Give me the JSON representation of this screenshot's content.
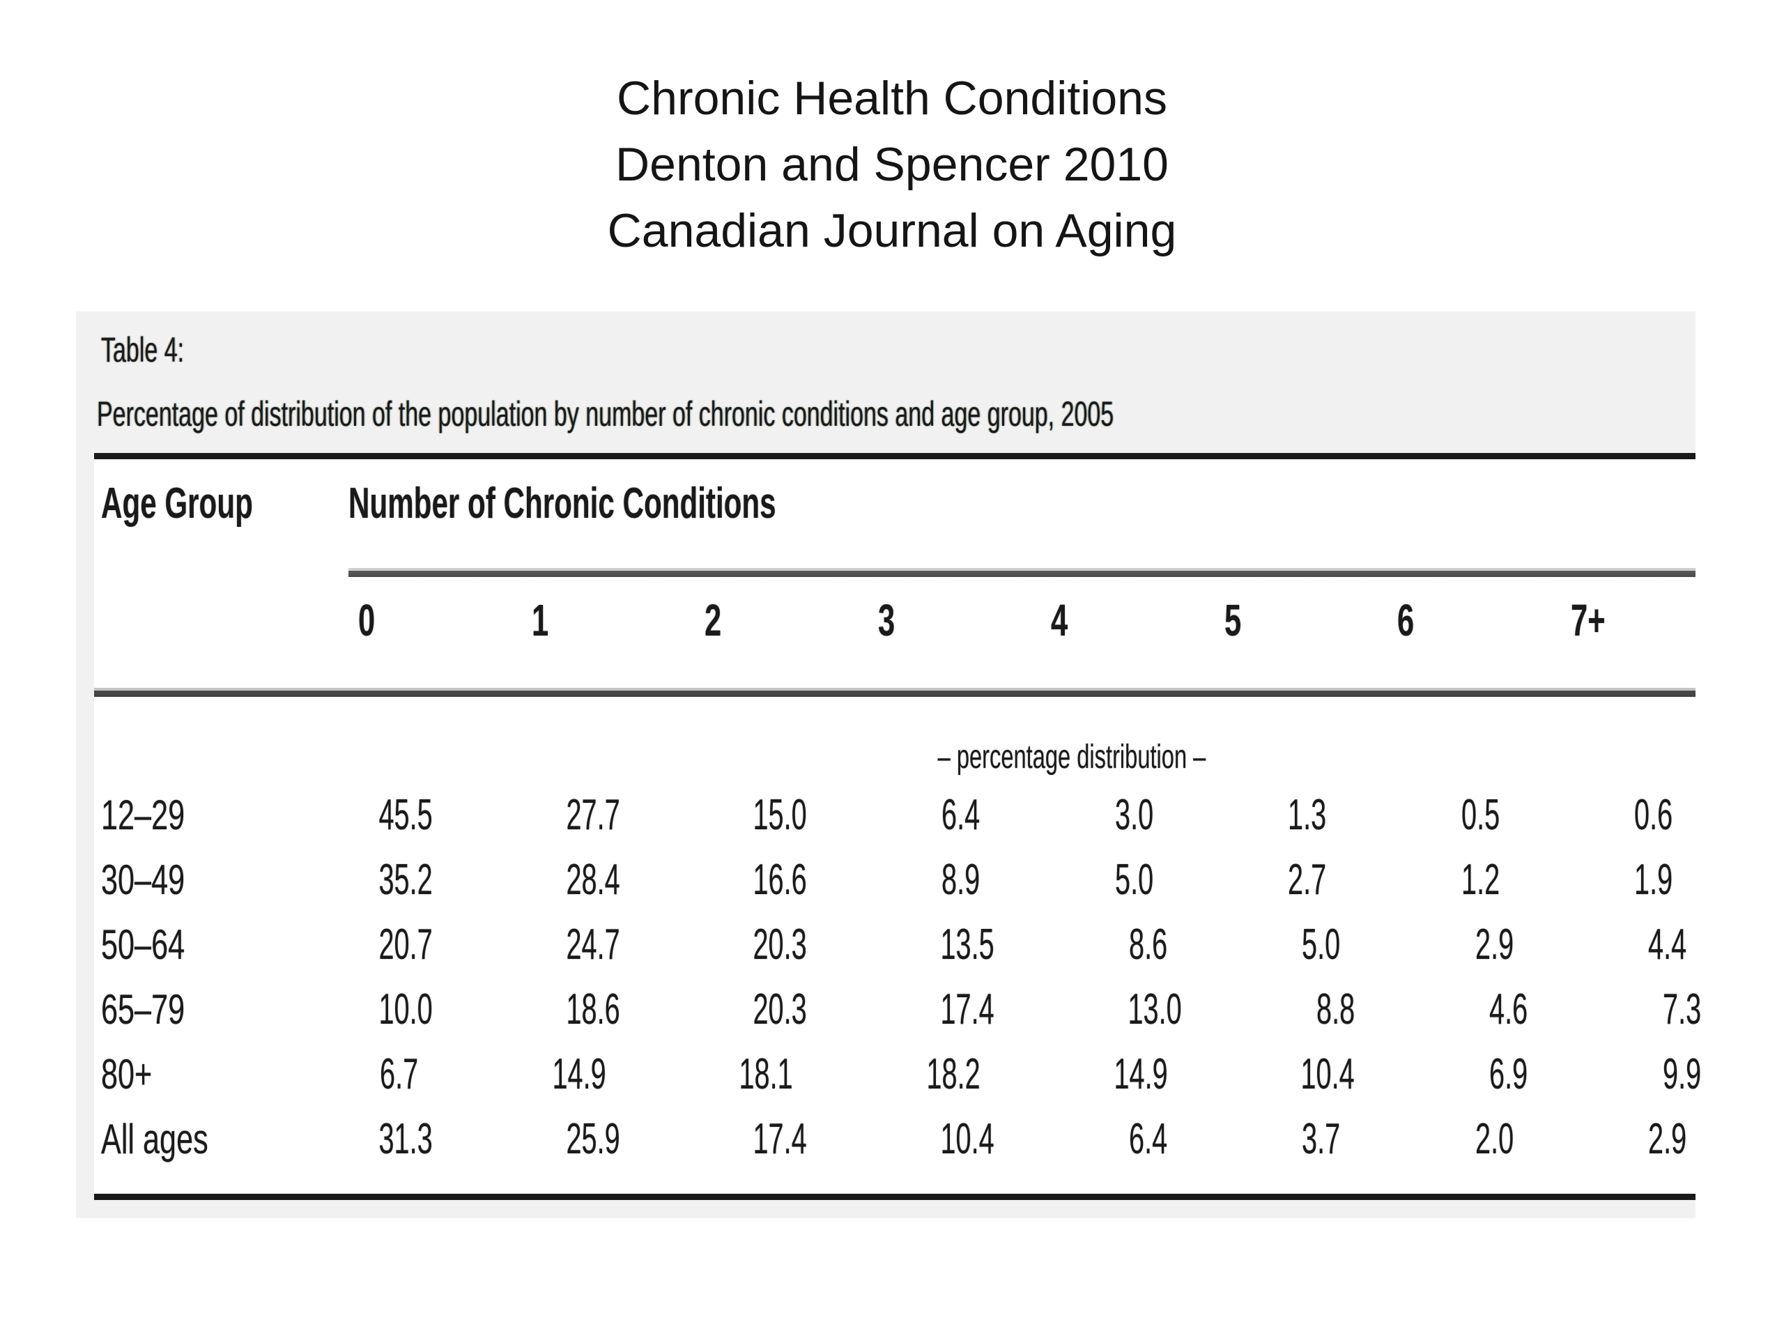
{
  "title": {
    "lines": [
      "Chronic Health Conditions",
      "Denton and Spencer 2010",
      "Canadian Journal on Aging"
    ]
  },
  "table": {
    "label": "Table 4:",
    "caption": "Percentage of distribution of the population by number of chronic conditions and age group, 2005",
    "row_header": "Age Group",
    "col_group_header": "Number of Chronic Conditions",
    "columns": [
      "0",
      "1",
      "2",
      "3",
      "4",
      "5",
      "6",
      "7+"
    ],
    "section_note": "– percentage distribution –",
    "rows": [
      {
        "label": "12–29",
        "values": [
          "45.5",
          "27.7",
          "15.0",
          "6.4",
          "3.0",
          "1.3",
          "0.5",
          "0.6"
        ]
      },
      {
        "label": "30–49",
        "values": [
          "35.2",
          "28.4",
          "16.6",
          "8.9",
          "5.0",
          "2.7",
          "1.2",
          "1.9"
        ]
      },
      {
        "label": "50–64",
        "values": [
          "20.7",
          "24.7",
          "20.3",
          "13.5",
          "8.6",
          "5.0",
          "2.9",
          "4.4"
        ]
      },
      {
        "label": "65–79",
        "values": [
          "10.0",
          "18.6",
          "20.3",
          "17.4",
          "13.0",
          "8.8",
          "4.6",
          "7.3"
        ]
      },
      {
        "label": "80+",
        "values": [
          "6.7",
          "14.9",
          "18.1",
          "18.2",
          "14.9",
          "10.4",
          "6.9",
          "9.9"
        ]
      },
      {
        "label": "All ages",
        "values": [
          "31.3",
          "25.9",
          "17.4",
          "10.4",
          "6.4",
          "3.7",
          "2.0",
          "2.9"
        ]
      }
    ],
    "colors": {
      "figure_background": "#f1f1f1",
      "rule_dark": "#1a1a1a",
      "rule_gray": "#4a4a4a"
    }
  }
}
